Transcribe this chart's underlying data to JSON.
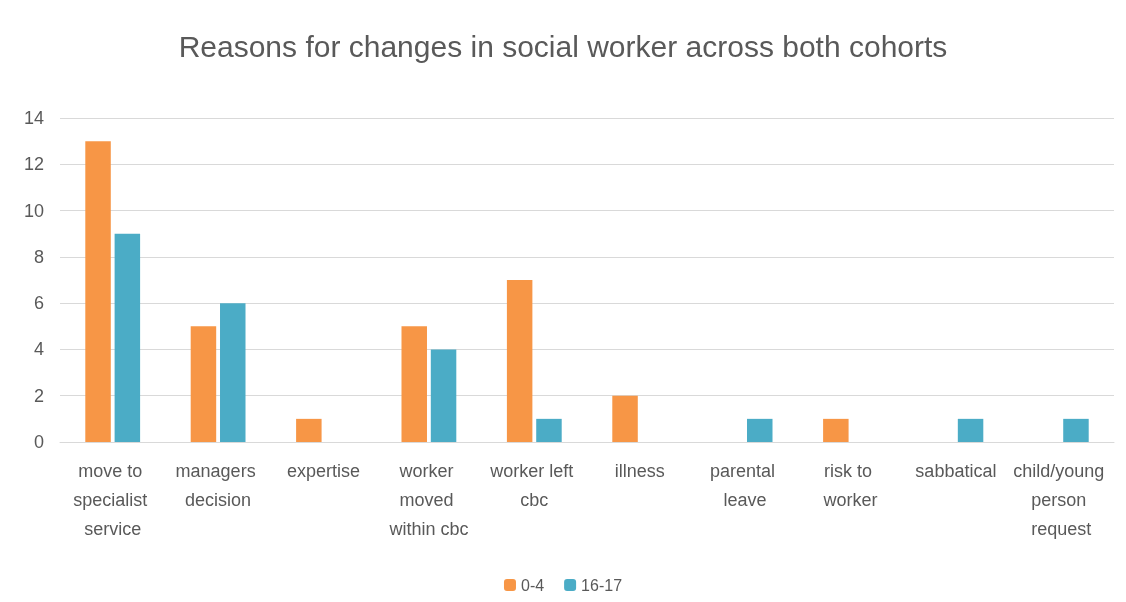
{
  "chart_data": {
    "type": "bar",
    "title": "Reasons for changes in social worker across both cohorts",
    "categories": [
      "move to specialist service",
      "managers decision",
      "expertise",
      "worker moved within cbc",
      "worker left cbc",
      "illness",
      "parental leave",
      "risk to worker",
      "sabbatical",
      "child/young person request"
    ],
    "series": [
      {
        "name": "0-4",
        "color": "#f79646",
        "values": [
          13,
          5,
          1,
          5,
          7,
          2,
          0,
          1,
          0,
          0
        ]
      },
      {
        "name": "16-17",
        "color": "#4bacc6",
        "values": [
          9,
          6,
          0,
          4,
          1,
          0,
          1,
          0,
          1,
          1
        ]
      }
    ],
    "ylim": [
      0,
      14
    ],
    "yticks": [
      0,
      2,
      4,
      6,
      8,
      10,
      12,
      14
    ],
    "grid": "y",
    "legend": "bottom"
  }
}
